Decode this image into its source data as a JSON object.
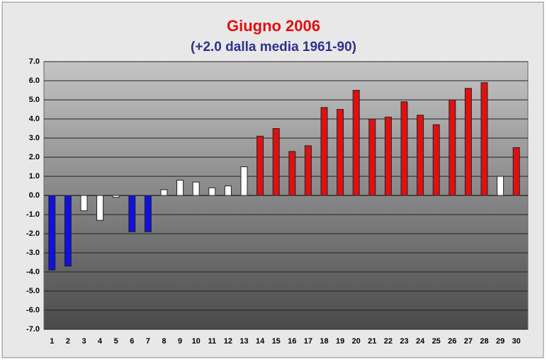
{
  "chart_data": {
    "type": "bar",
    "title": "Giugno 2006",
    "subtitle": "(+2.0 dalla media 1961-90)",
    "categories": [
      "1",
      "2",
      "3",
      "4",
      "5",
      "6",
      "7",
      "8",
      "9",
      "10",
      "11",
      "12",
      "13",
      "14",
      "15",
      "16",
      "17",
      "18",
      "19",
      "20",
      "21",
      "22",
      "23",
      "24",
      "25",
      "26",
      "27",
      "28",
      "29",
      "30"
    ],
    "values": [
      -3.9,
      -3.7,
      -0.8,
      -1.3,
      -0.1,
      -1.9,
      -1.9,
      0.3,
      0.8,
      0.7,
      0.4,
      0.5,
      1.5,
      3.1,
      3.5,
      2.3,
      2.6,
      4.6,
      4.5,
      5.5,
      4.0,
      4.1,
      4.9,
      4.2,
      3.7,
      5.0,
      5.6,
      5.9,
      1.0,
      2.5
    ],
    "colors": [
      "#1010e0",
      "#1010e0",
      "#ffffff",
      "#ffffff",
      "#ffffff",
      "#1010e0",
      "#1010e0",
      "#ffffff",
      "#ffffff",
      "#ffffff",
      "#ffffff",
      "#ffffff",
      "#ffffff",
      "#e01010",
      "#e01010",
      "#e01010",
      "#e01010",
      "#e01010",
      "#e01010",
      "#e01010",
      "#e01010",
      "#e01010",
      "#e01010",
      "#e01010",
      "#e01010",
      "#e01010",
      "#e01010",
      "#e01010",
      "#ffffff",
      "#e01010"
    ],
    "ylim": [
      -7,
      7
    ],
    "yticks": [
      {
        "value": 7,
        "label": "7.0"
      },
      {
        "value": 6,
        "label": "6.0"
      },
      {
        "value": 5,
        "label": "5.0"
      },
      {
        "value": 4,
        "label": "4.0"
      },
      {
        "value": 3,
        "label": "3.0"
      },
      {
        "value": 2,
        "label": "2.0"
      },
      {
        "value": 1,
        "label": "1.0"
      },
      {
        "value": 0,
        "label": "0.0"
      },
      {
        "value": -1,
        "label": "-1.0"
      },
      {
        "value": -2,
        "label": "-2.0"
      },
      {
        "value": -3,
        "label": "-3.0"
      },
      {
        "value": -4,
        "label": "-4.0"
      },
      {
        "value": -5,
        "label": "-5.0"
      },
      {
        "value": -6,
        "label": "-6.0"
      },
      {
        "value": -7,
        "label": "-7.0"
      }
    ],
    "grid": true
  }
}
